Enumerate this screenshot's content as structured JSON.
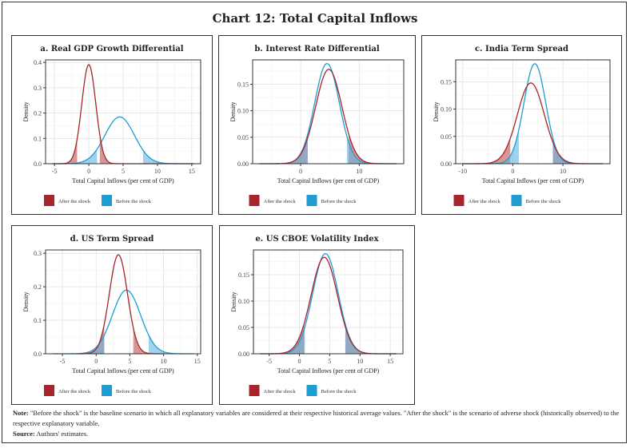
{
  "title": "Chart 12: Total Capital Inflows",
  "legend": {
    "after": "After the shock",
    "before": "Before the shock"
  },
  "colors": {
    "after": "#a8242a",
    "before": "#1e9dd1",
    "after_fill": "#c0504d",
    "before_fill": "#5fb4e0"
  },
  "note": {
    "label": "Note:",
    "text": "\"Before the shock\" is the baseline scenario in which all explanatory variables are considered at their respective historical average values. \"After the  shock\" is the scenario of adverse shock (historically observed) to the respective explanatory variable.",
    "source_label": "Source:",
    "source_text": "Authors' estimates."
  },
  "chart_data": [
    {
      "type": "area",
      "title": "a. Real GDP Growth Differential",
      "xlabel": "Total Capital Inflows (per cent of GDP)",
      "ylabel": "Density",
      "xlim": [
        -6.3,
        16.3
      ],
      "ylim": [
        0,
        0.41
      ],
      "grid": true,
      "legend_position": "bottom",
      "xticks": [
        -5,
        0,
        5,
        10,
        15
      ],
      "yticks": [
        0,
        0.1,
        0.2,
        0.3,
        0.4
      ],
      "ytick_labels": [
        "0.0",
        "0.1",
        "0.2",
        "0.3",
        "0.4"
      ],
      "series": [
        {
          "name": "After the shock",
          "distribution": "density",
          "mean": 0,
          "sd": 1.02,
          "range": [
            -5.3,
            15.3
          ],
          "shaded_below": -1.7,
          "shaded_above": 1.6
        },
        {
          "name": "Before the shock",
          "distribution": "density",
          "mean": 4.5,
          "sd": 2.16,
          "range": [
            -5.3,
            15.3
          ],
          "shaded_below": 1.2,
          "shaded_above": 7.9
        }
      ]
    },
    {
      "type": "area",
      "title": "b. Interest Rate Differential",
      "xlabel": "Total Capital Inflows (per cent of GDP)",
      "ylabel": "Density",
      "xlim": [
        -8.2,
        17.6
      ],
      "ylim": [
        0,
        0.196
      ],
      "grid": true,
      "legend_position": "bottom",
      "xticks": [
        0,
        10
      ],
      "yticks": [
        0,
        0.05,
        0.1,
        0.15
      ],
      "ytick_labels": [
        "0.00",
        "0.05",
        "0.10",
        "0.15"
      ],
      "series": [
        {
          "name": "After the shock",
          "distribution": "density",
          "mean": 4.8,
          "sd": 2.24,
          "range": [
            -7,
            16.4
          ],
          "shaded_below": 1.2,
          "shaded_above": 8.2
        },
        {
          "name": "Before the shock",
          "distribution": "density",
          "mean": 4.5,
          "sd": 2.11,
          "range": [
            -7,
            16.4
          ],
          "shaded_below": 1.2,
          "shaded_above": 7.9
        }
      ]
    },
    {
      "type": "area",
      "title": "c.  India Term Spread",
      "xlabel": "Total Capital Inflows (per cent of GDP)",
      "ylabel": "Density",
      "xlim": [
        -11.4,
        19.4
      ],
      "ylim": [
        0,
        0.19
      ],
      "grid": true,
      "legend_position": "bottom",
      "xticks": [
        -10,
        0,
        10
      ],
      "yticks": [
        0,
        0.05,
        0.1,
        0.15
      ],
      "ytick_labels": [
        "0.00",
        "0.05",
        "0.10",
        "0.15"
      ],
      "series": [
        {
          "name": "After the shock",
          "distribution": "density",
          "mean": 3.6,
          "sd": 2.7,
          "range": [
            -10,
            18
          ],
          "shaded_below": -0.5,
          "shaded_above": 8.0
        },
        {
          "name": "Before the shock",
          "distribution": "density",
          "mean": 4.4,
          "sd": 2.18,
          "range": [
            -10,
            18
          ],
          "shaded_below": 1.2,
          "shaded_above": 8.0
        }
      ]
    },
    {
      "type": "area",
      "title": "d. US Term Spread",
      "xlabel": "Total Capital Inflows (per cent of GDP)",
      "ylabel": "Density",
      "xlim": [
        -7.5,
        15.5
      ],
      "ylim": [
        0,
        0.31
      ],
      "grid": true,
      "legend_position": "bottom",
      "xticks": [
        -5,
        0,
        5,
        10,
        15
      ],
      "yticks": [
        0,
        0.1,
        0.2,
        0.3
      ],
      "ytick_labels": [
        "0.0",
        "0.1",
        "0.2",
        "0.3"
      ],
      "series": [
        {
          "name": "After the shock",
          "distribution": "density",
          "mean": 3.3,
          "sd": 1.35,
          "range": [
            -3,
            10
          ],
          "shaded_below": 1.2,
          "shaded_above": 5.5
        },
        {
          "name": "Before the shock",
          "distribution": "density",
          "mean": 4.5,
          "sd": 2.1,
          "range": [
            -6.5,
            14.5
          ],
          "shaded_below": 1.2,
          "shaded_above": 7.8
        }
      ]
    },
    {
      "type": "area",
      "title": "e. US CBOE Volatility Index",
      "xlabel": "Total Capital Inflows (per cent of GDP)",
      "ylabel": "Density",
      "xlim": [
        -7.6,
        17.1
      ],
      "ylim": [
        0,
        0.197
      ],
      "grid": true,
      "legend_position": "bottom",
      "xticks": [
        -5,
        0,
        5,
        10,
        15
      ],
      "yticks": [
        0,
        0.05,
        0.1,
        0.15
      ],
      "ytick_labels": [
        "0.00",
        "0.05",
        "0.10",
        "0.15"
      ],
      "series": [
        {
          "name": "After the shock",
          "distribution": "density",
          "mean": 4.1,
          "sd": 2.18,
          "range": [
            -6.5,
            16
          ],
          "shaded_below": 0.8,
          "shaded_above": 7.6
        },
        {
          "name": "Before the shock",
          "distribution": "density",
          "mean": 4.3,
          "sd": 2.1,
          "range": [
            -6.5,
            16
          ],
          "shaded_below": 0.9,
          "shaded_above": 7.6
        }
      ]
    }
  ]
}
